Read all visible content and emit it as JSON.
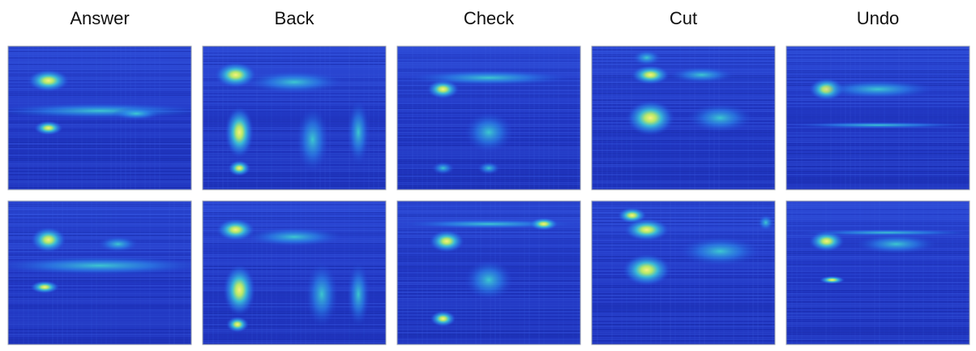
{
  "columns": [
    {
      "label": "Answer"
    },
    {
      "label": "Back"
    },
    {
      "label": "Check"
    },
    {
      "label": "Cut"
    },
    {
      "label": "Undo"
    }
  ]
}
